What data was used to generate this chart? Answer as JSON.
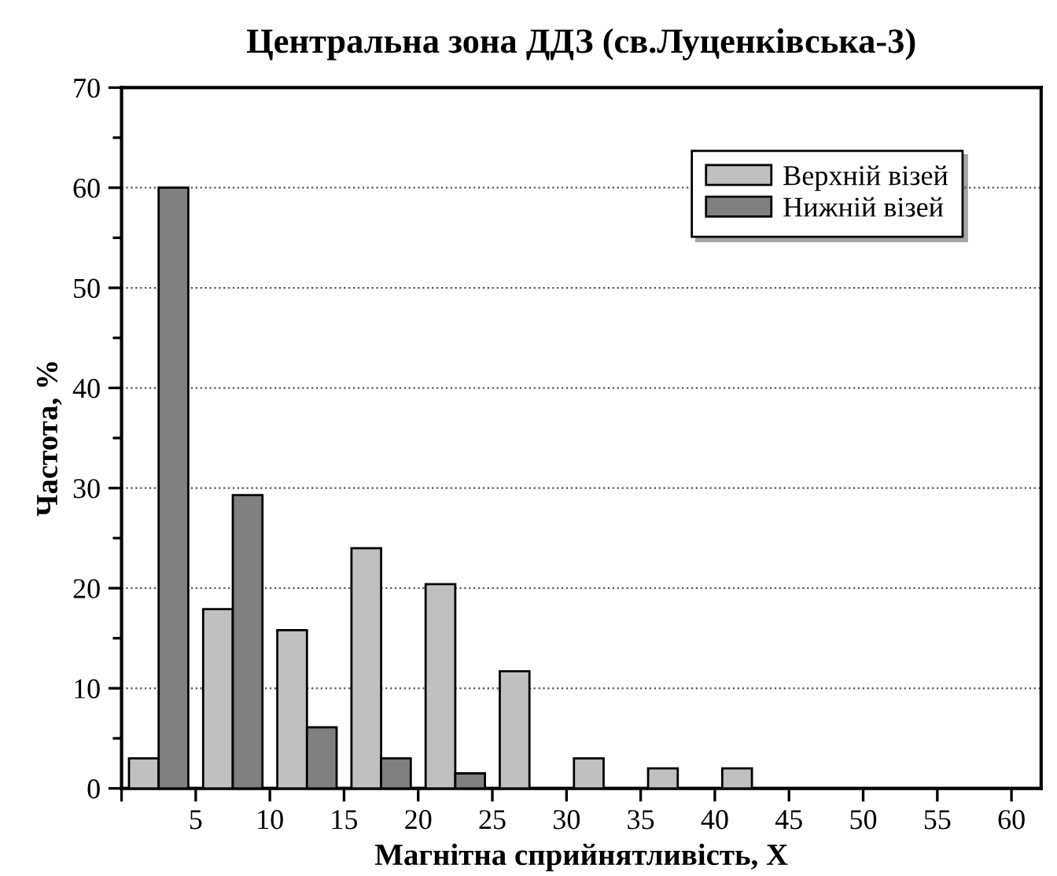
{
  "chart_data": {
    "type": "bar",
    "title": "Центральна зона ДДЗ (св.Луценківська-3)",
    "xlabel": "Магнітна сприйнятливість, Χ",
    "ylabel": "Частота, %",
    "series": [
      {
        "name": "Верхній візей",
        "color": "#c0c0c0",
        "x": [
          1.5,
          6.5,
          11.5,
          16.5,
          21.5,
          26.5,
          31.5,
          36.5,
          41.5
        ],
        "values": [
          3.0,
          17.9,
          15.8,
          24.0,
          20.4,
          11.7,
          3.0,
          2.0,
          2.0
        ]
      },
      {
        "name": "Нижній візей",
        "color": "#808080",
        "x": [
          3.5,
          8.5,
          13.5,
          18.5,
          23.5
        ],
        "values": [
          60,
          29.3,
          6.1,
          3.0,
          1.5
        ]
      }
    ],
    "xlim": [
      0,
      62
    ],
    "xticks": [
      {
        "value": 0,
        "label": null
      },
      5,
      10,
      15,
      20,
      25,
      30,
      35,
      40,
      45,
      50,
      55,
      60
    ],
    "ylim": [
      0,
      70
    ],
    "yticks": [
      0,
      10,
      20,
      30,
      40,
      50,
      60,
      70
    ],
    "grid": "y",
    "legend": "top right"
  }
}
